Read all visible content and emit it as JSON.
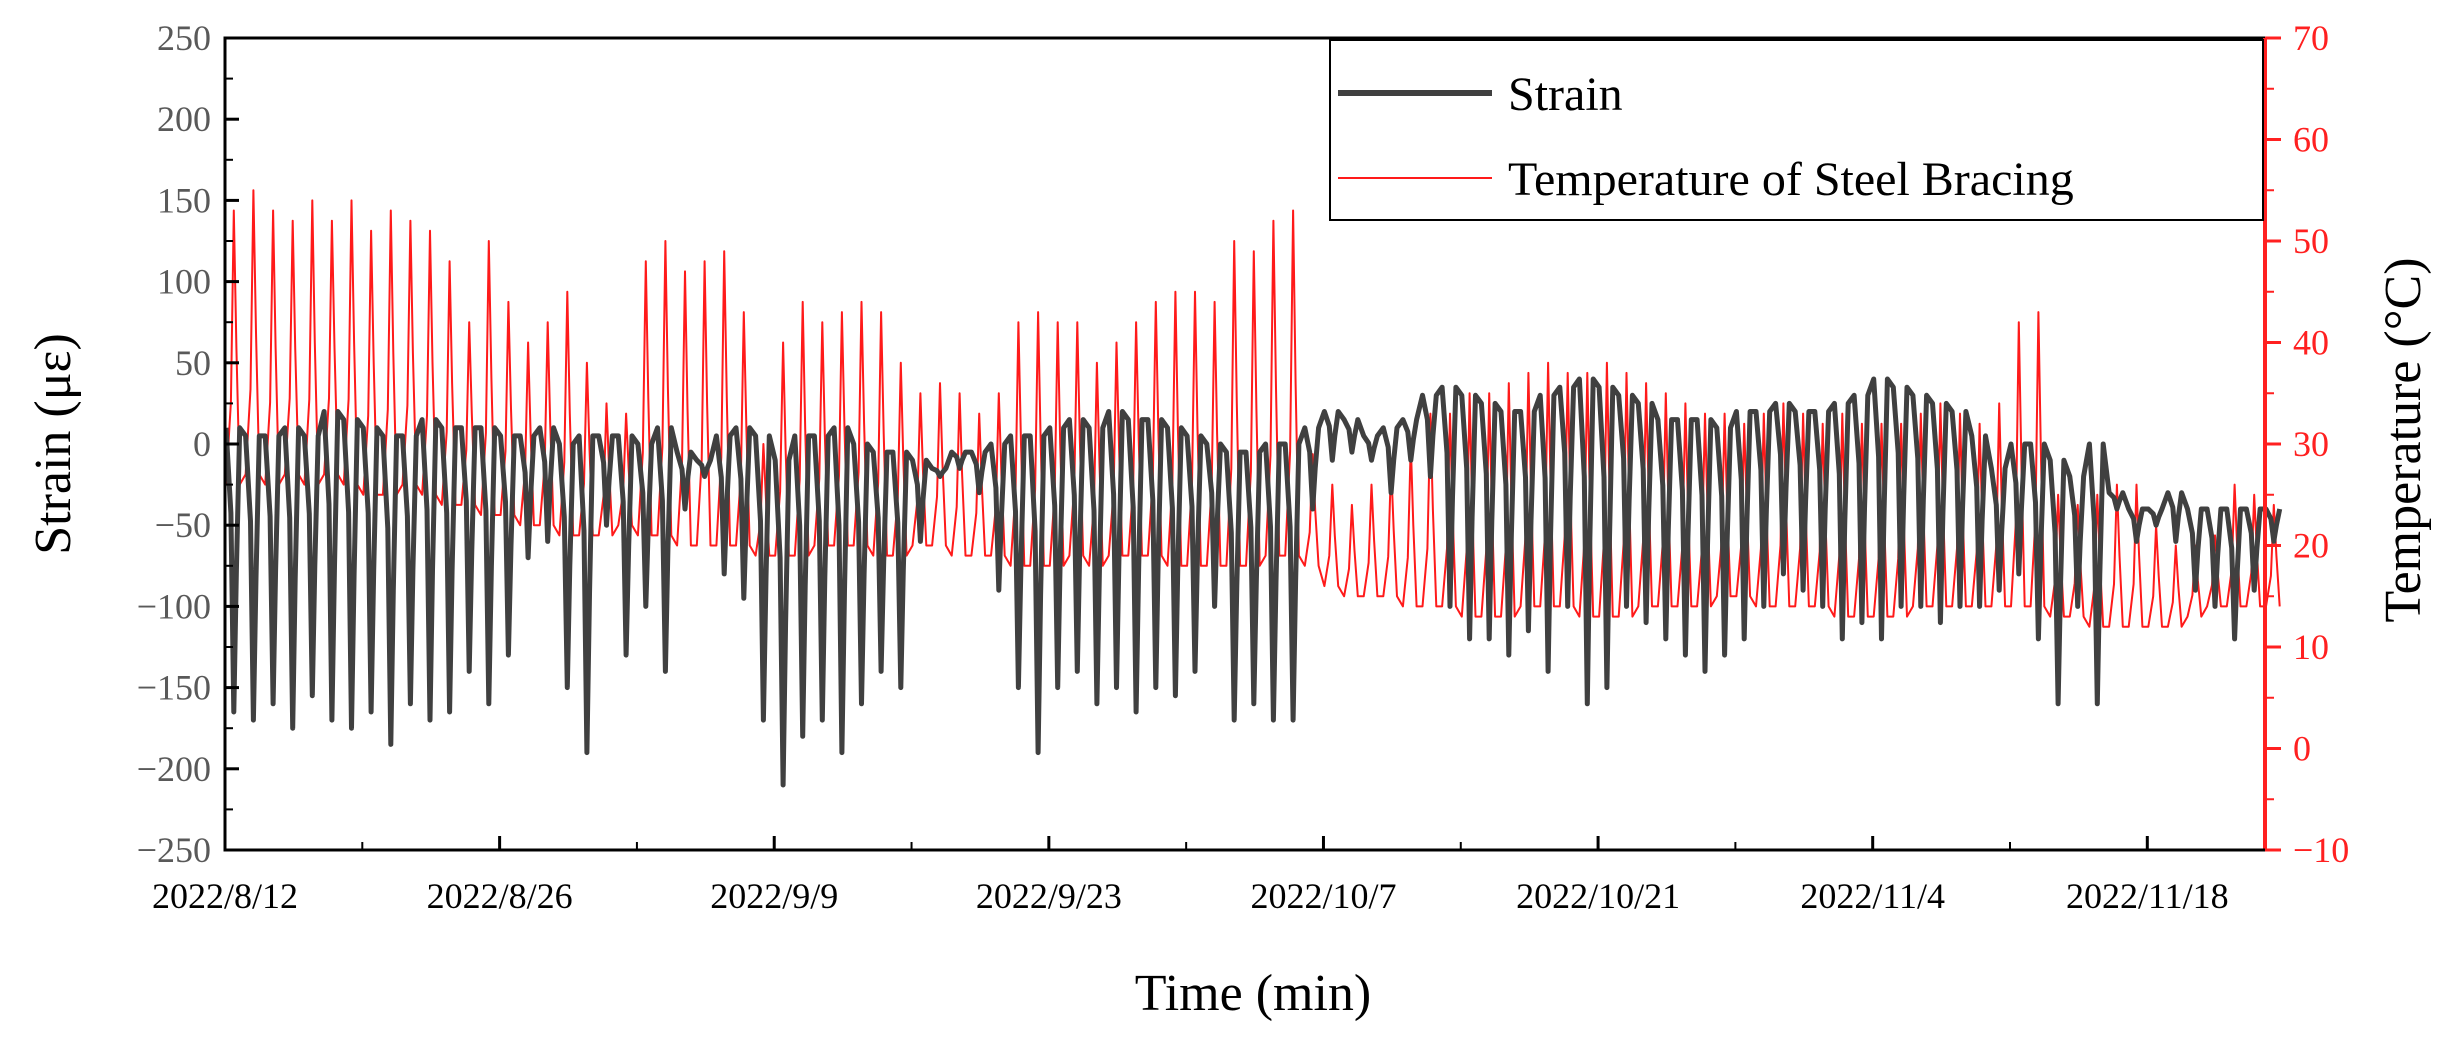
{
  "chart_data": {
    "type": "line",
    "title": "",
    "xlabel": "Time (min)",
    "ylabel": "Strain (με)",
    "y2label": "Temperature (°C)",
    "ylim": [
      -250,
      250
    ],
    "y2lim": [
      -10,
      70
    ],
    "x_start": "2022/8/12",
    "x_end": "2022/11/24",
    "x_days_total": 104,
    "x_tick_labels": [
      "2022/8/12",
      "2022/8/26",
      "2022/9/9",
      "2022/9/23",
      "2022/10/7",
      "2022/10/21",
      "2022/11/4",
      "2022/11/18"
    ],
    "x_tick_days": [
      0,
      14,
      28,
      42,
      56,
      70,
      84,
      98
    ],
    "y_ticks": [
      250,
      200,
      150,
      100,
      50,
      0,
      -50,
      -100,
      -150,
      -200,
      -250
    ],
    "y2_ticks": [
      70,
      60,
      50,
      40,
      30,
      20,
      10,
      0,
      -10
    ],
    "legend_position": "top-right",
    "colors": {
      "strain": "#404040",
      "temperature": "#ff1a1a",
      "right_axis": "#ff2020",
      "left_tick_text": "#595959"
    },
    "series": [
      {
        "name": "Strain",
        "axis": "left",
        "daily_min": [
          -165,
          -170,
          -160,
          -175,
          -155,
          -170,
          -175,
          -165,
          -185,
          -160,
          -170,
          -165,
          -140,
          -160,
          -130,
          -70,
          -60,
          -150,
          -190,
          -50,
          -130,
          -100,
          -140,
          -40,
          -20,
          -80,
          -95,
          -170,
          -210,
          -180,
          -170,
          -190,
          -160,
          -140,
          -150,
          -60,
          -20,
          -15,
          -30,
          -90,
          -150,
          -190,
          -150,
          -140,
          -160,
          -150,
          -165,
          -150,
          -155,
          -140,
          -100,
          -170,
          -160,
          -170,
          -170,
          -40,
          -10,
          -5,
          -10,
          -30,
          -10,
          -20,
          -100,
          -120,
          -120,
          -130,
          -115,
          -140,
          -100,
          -160,
          -150,
          -100,
          -110,
          -120,
          -130,
          -140,
          -130,
          -120,
          -100,
          -80,
          -90,
          -100,
          -120,
          -110,
          -120,
          -100,
          -100,
          -110,
          -100,
          -100,
          -90,
          -80,
          -120,
          -160,
          -100,
          -160,
          -40,
          -60,
          -50,
          -60,
          -90,
          -100,
          -120,
          -90,
          -60
        ],
        "daily_max": [
          10,
          5,
          5,
          10,
          5,
          20,
          15,
          10,
          5,
          5,
          15,
          10,
          10,
          10,
          5,
          5,
          10,
          0,
          5,
          5,
          5,
          0,
          10,
          -5,
          -10,
          5,
          10,
          5,
          -10,
          5,
          5,
          10,
          0,
          -5,
          -5,
          -10,
          -15,
          -5,
          -5,
          0,
          5,
          5,
          10,
          15,
          10,
          20,
          15,
          15,
          10,
          5,
          0,
          -5,
          -5,
          0,
          0,
          10,
          20,
          15,
          5,
          10,
          15,
          30,
          35,
          30,
          25,
          20,
          20,
          30,
          35,
          40,
          35,
          30,
          25,
          15,
          15,
          15,
          10,
          20,
          20,
          25,
          20,
          20,
          25,
          30,
          40,
          35,
          30,
          25,
          20,
          5,
          -15,
          0,
          0,
          -10,
          -20,
          0,
          -30,
          -40,
          -40,
          -30,
          -40,
          -40,
          -40,
          -40,
          -40
        ]
      },
      {
        "name": "Temperature of Steel Bracing",
        "axis": "right",
        "daily_max": [
          53,
          55,
          53,
          52,
          54,
          52,
          54,
          51,
          53,
          52,
          51,
          48,
          42,
          50,
          44,
          40,
          42,
          45,
          38,
          34,
          33,
          48,
          50,
          47,
          48,
          49,
          43,
          30,
          40,
          44,
          42,
          43,
          44,
          43,
          38,
          35,
          36,
          35,
          33,
          35,
          42,
          43,
          42,
          42,
          38,
          40,
          42,
          44,
          45,
          45,
          44,
          50,
          49,
          52,
          53,
          29,
          26,
          24,
          26,
          28,
          30,
          33,
          33,
          35,
          35,
          36,
          37,
          38,
          37,
          37,
          38,
          37,
          36,
          35,
          34,
          33,
          33,
          32,
          33,
          34,
          33,
          32,
          33,
          32,
          32,
          32,
          33,
          34,
          33,
          32,
          34,
          42,
          43,
          25,
          24,
          25,
          26,
          26,
          22,
          20,
          20,
          21,
          26,
          25,
          24
        ],
        "daily_min": [
          26,
          27,
          26,
          27,
          26,
          27,
          26,
          25,
          25,
          26,
          25,
          24,
          24,
          23,
          23,
          22,
          22,
          21,
          21,
          21,
          22,
          21,
          21,
          20,
          20,
          20,
          20,
          19,
          19,
          19,
          20,
          20,
          20,
          19,
          19,
          20,
          20,
          19,
          19,
          19,
          18,
          18,
          18,
          19,
          18,
          19,
          19,
          19,
          18,
          18,
          18,
          18,
          18,
          19,
          19,
          18,
          16,
          15,
          15,
          15,
          14,
          14,
          14,
          13,
          13,
          13,
          14,
          14,
          14,
          13,
          13,
          13,
          14,
          14,
          14,
          14,
          15,
          15,
          14,
          14,
          14,
          14,
          13,
          13,
          13,
          13,
          14,
          14,
          14,
          14,
          14,
          14,
          14,
          13,
          13,
          12,
          12,
          12,
          12,
          12,
          13,
          14,
          14,
          14,
          14
        ]
      }
    ]
  }
}
